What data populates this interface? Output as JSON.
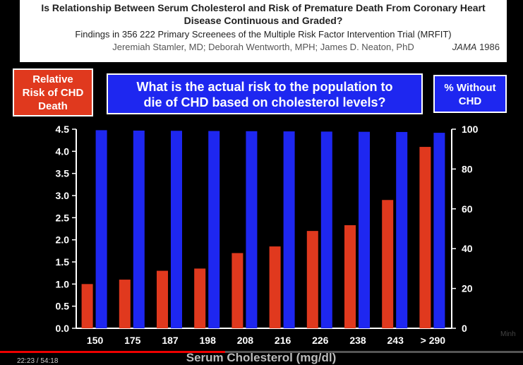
{
  "header": {
    "title_line1": "Is Relationship Between Serum Cholesterol and Risk of Premature Death From Coronary Heart",
    "title_line2": "Disease Continuous and Graded?",
    "subtitle": "Findings in 356 222 Primary Screenees of the Multiple Risk Factor Intervention Trial (MRFIT)",
    "authors": "Jeremiah Stamler, MD; Deborah Wentworth, MPH; James D. Neaton, PhD",
    "journal": "JAMA",
    "year": "1986"
  },
  "legend_left": {
    "line1": "Relative",
    "line2": "Risk of CHD",
    "line3": "Death",
    "color": "#e0391e"
  },
  "question": {
    "line1": "What is the actual risk to the population to",
    "line2": "die of CHD based on cholesterol levels?",
    "color": "#1e27f0"
  },
  "legend_right": {
    "line1": "% Without",
    "line2": "CHD",
    "color": "#1e27f0"
  },
  "player": {
    "time": "22:23 / 54:18",
    "watermark": "Minh"
  },
  "chart_data": {
    "type": "bar",
    "xlabel": "Serum Cholesterol (mg/dl)",
    "categories": [
      "150",
      "175",
      "187",
      "198",
      "208",
      "216",
      "226",
      "238",
      "243",
      "> 290"
    ],
    "left_axis": {
      "ylim": [
        0,
        4.5
      ],
      "ticks": [
        "0.0",
        "0.5",
        "1.0",
        "1.5",
        "2.0",
        "2.5",
        "3.0",
        "3.5",
        "4.0",
        "4.5"
      ]
    },
    "right_axis": {
      "ylim": [
        0,
        100
      ],
      "ticks": [
        "0",
        "20",
        "40",
        "60",
        "80",
        "100"
      ]
    },
    "series": [
      {
        "axis": "left",
        "color": "#e0391e",
        "values": [
          1.0,
          1.1,
          1.3,
          1.35,
          1.7,
          1.85,
          2.2,
          2.33,
          2.9,
          4.1
        ]
      },
      {
        "axis": "right",
        "color": "#1e27f0",
        "values": [
          99.5,
          99.3,
          99.2,
          99.1,
          99.0,
          98.9,
          98.8,
          98.7,
          98.6,
          98.2
        ]
      }
    ]
  }
}
